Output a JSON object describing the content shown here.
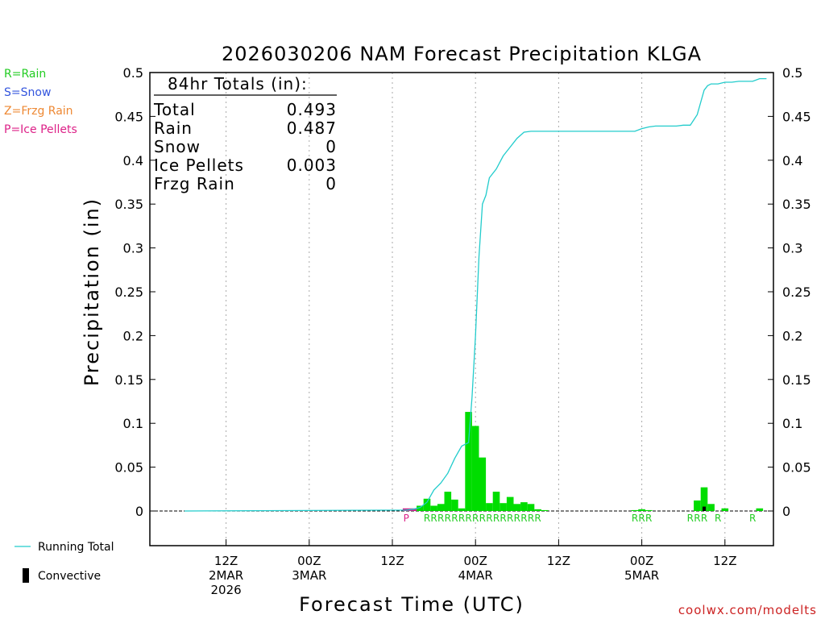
{
  "chart_data": {
    "type": "bar",
    "title": "2026030206 NAM Forecast Precipitation KLGA",
    "ylabel": "Precipitation (in)",
    "xlabel": "Forecast Time (UTC)",
    "ylim": [
      -0.04,
      0.5
    ],
    "yticks": [
      "0.5",
      "0.45",
      "0.4",
      "0.35",
      "0.3",
      "0.25",
      "0.2",
      "0.15",
      "0.1",
      "0.05",
      "0"
    ],
    "xlim_hours": [
      -5,
      85
    ],
    "xticks": [
      {
        "hour": 6,
        "lines": [
          "12Z",
          "2MAR",
          "2026"
        ]
      },
      {
        "hour": 18,
        "lines": [
          "00Z",
          "3MAR"
        ]
      },
      {
        "hour": 30,
        "lines": [
          "12Z"
        ]
      },
      {
        "hour": 42,
        "lines": [
          "00Z",
          "4MAR"
        ]
      },
      {
        "hour": 54,
        "lines": [
          "12Z"
        ]
      },
      {
        "hour": 66,
        "lines": [
          "00Z",
          "5MAR"
        ]
      },
      {
        "hour": 78,
        "lines": [
          "12Z"
        ]
      }
    ],
    "bars_hours": [
      32,
      33,
      34,
      35,
      36,
      37,
      38,
      39,
      40,
      41,
      42,
      43,
      44,
      45,
      46,
      47,
      48,
      49,
      50,
      51,
      52,
      65,
      66,
      67,
      74,
      75,
      76,
      78,
      83
    ],
    "bars_values": [
      0.003,
      0.003,
      0.006,
      0.014,
      0.006,
      0.008,
      0.022,
      0.013,
      0.003,
      0.113,
      0.097,
      0.061,
      0.009,
      0.022,
      0.009,
      0.016,
      0.008,
      0.01,
      0.008,
      0.002,
      0.001,
      0.001,
      0.002,
      0.001,
      0.012,
      0.027,
      0.008,
      0.003,
      0.003
    ],
    "bars_types": [
      "P",
      "P",
      "R",
      "R",
      "R",
      "R",
      "R",
      "R",
      "R",
      "R",
      "R",
      "R",
      "R",
      "R",
      "R",
      "R",
      "R",
      "R",
      "R",
      "R",
      "R",
      "R",
      "R",
      "R",
      "R",
      "R",
      "R",
      "R",
      "R"
    ],
    "convective_hours": [
      75
    ],
    "convective_values": [
      0.005
    ],
    "running_total_hours": [
      0,
      32,
      33,
      34,
      35,
      36,
      37,
      38,
      39,
      40,
      41,
      41.5,
      42,
      42.5,
      43,
      43.5,
      44,
      45,
      46,
      47,
      48,
      49,
      50,
      51,
      52,
      65,
      66,
      67,
      68,
      69,
      70,
      71,
      72,
      73,
      74,
      75,
      75.5,
      76,
      77,
      78,
      79,
      80,
      81,
      82,
      83,
      84
    ],
    "running_total_values": [
      0,
      0.001,
      0.002,
      0.004,
      0.01,
      0.024,
      0.032,
      0.043,
      0.06,
      0.074,
      0.078,
      0.13,
      0.2,
      0.29,
      0.35,
      0.36,
      0.38,
      0.39,
      0.405,
      0.415,
      0.425,
      0.432,
      0.433,
      0.433,
      0.433,
      0.433,
      0.436,
      0.438,
      0.439,
      0.439,
      0.439,
      0.439,
      0.44,
      0.44,
      0.452,
      0.48,
      0.485,
      0.487,
      0.487,
      0.489,
      0.489,
      0.49,
      0.49,
      0.49,
      0.493,
      0.493
    ],
    "type_labels_rain_hours": [
      35,
      36,
      37,
      38,
      39,
      40,
      41,
      42,
      43,
      44,
      45,
      46,
      47,
      48,
      49,
      50,
      51,
      65,
      66,
      67,
      73,
      74,
      75,
      77,
      82
    ],
    "type_labels_pellet_hours": [
      32
    ],
    "type_labels_rain": "R",
    "type_labels_pellet": "P",
    "totals": {
      "header": "84hr Totals (in):",
      "rows": [
        {
          "label": "Total",
          "value": "0.493"
        },
        {
          "label": "Rain",
          "value": "0.487"
        },
        {
          "label": "Snow",
          "value": "0"
        },
        {
          "label": "Ice Pellets",
          "value": "0.003"
        },
        {
          "label": "Frzg Rain",
          "value": "0"
        }
      ]
    },
    "legend_types": [
      {
        "text": "R=Rain",
        "color": "#22cc22"
      },
      {
        "text": "S=Snow",
        "color": "#3355dd"
      },
      {
        "text": "Z=Frzg Rain",
        "color": "#ee8833"
      },
      {
        "text": "P=Ice Pellets",
        "color": "#dd2288"
      }
    ],
    "legend_series": [
      {
        "text": "Running Total",
        "color": "#22cccc"
      },
      {
        "text": "Convective",
        "color": "#000000"
      }
    ],
    "colors": {
      "rain": "#00dd00",
      "pellets": "#cc2288",
      "running_total": "#22cccc",
      "convective": "#000000",
      "grid": "#aaaaaa"
    }
  },
  "credit": "coolwx.com/modelts"
}
